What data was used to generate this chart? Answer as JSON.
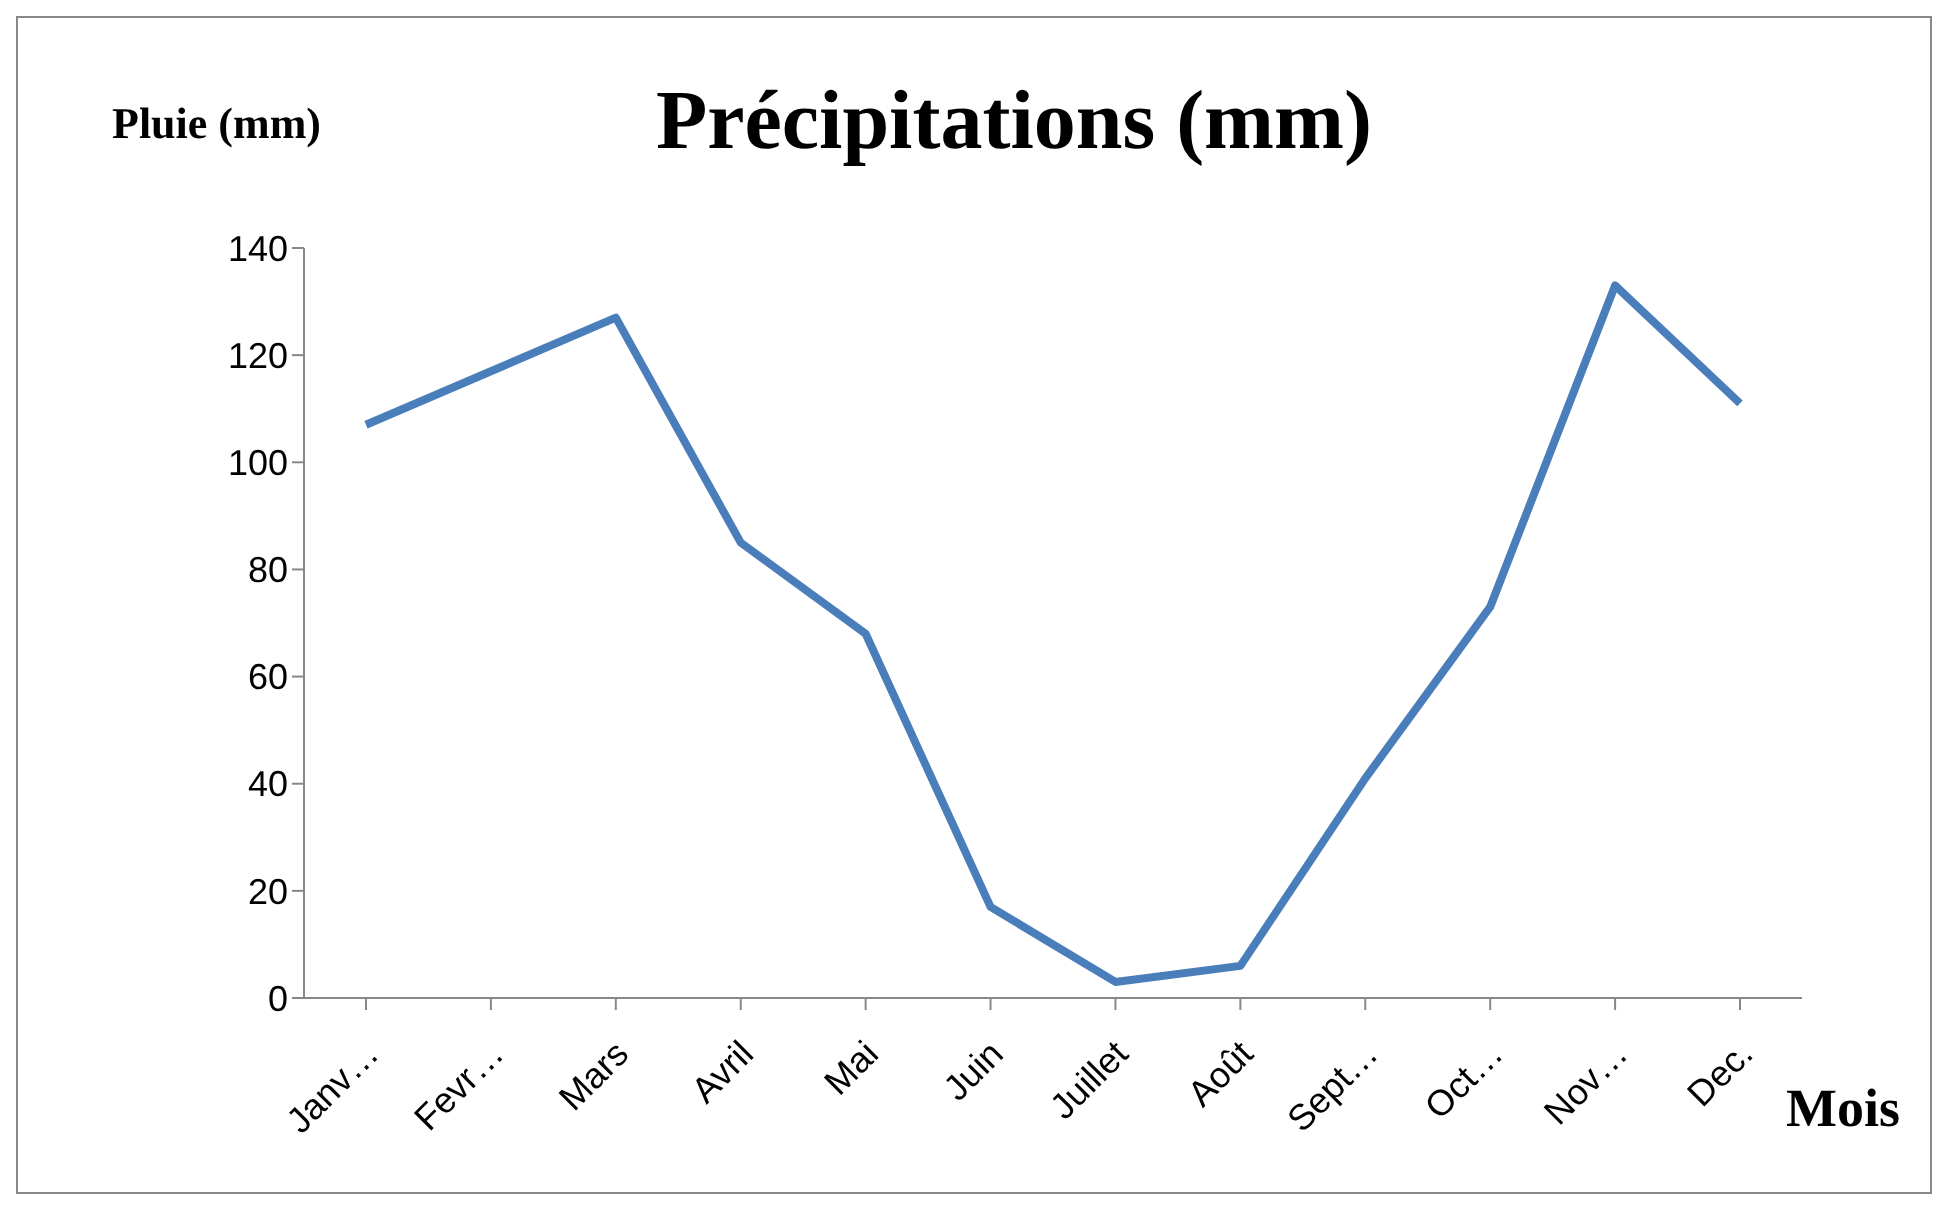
{
  "chart_data": {
    "type": "line",
    "title": "Précipitations (mm)",
    "ylabel": "Pluie (mm)",
    "xlabel": "Mois",
    "categories": [
      "Janv…",
      "Fevr…",
      "Mars",
      "Avril",
      "Mai",
      "Juin",
      "Juillet",
      "Août",
      "Sept…",
      "Oct…",
      "Nov…",
      "Dec."
    ],
    "series": [
      {
        "color": "#4a7ebb",
        "values": [
          107,
          117,
          127,
          85,
          68,
          17,
          3,
          6,
          41,
          73,
          133,
          111
        ]
      }
    ],
    "ylim": [
      0,
      140
    ],
    "yticks": [
      0,
      20,
      40,
      60,
      80,
      100,
      120,
      140
    ],
    "grid": false,
    "legend": false,
    "marker": "none",
    "line_style": "solid"
  }
}
